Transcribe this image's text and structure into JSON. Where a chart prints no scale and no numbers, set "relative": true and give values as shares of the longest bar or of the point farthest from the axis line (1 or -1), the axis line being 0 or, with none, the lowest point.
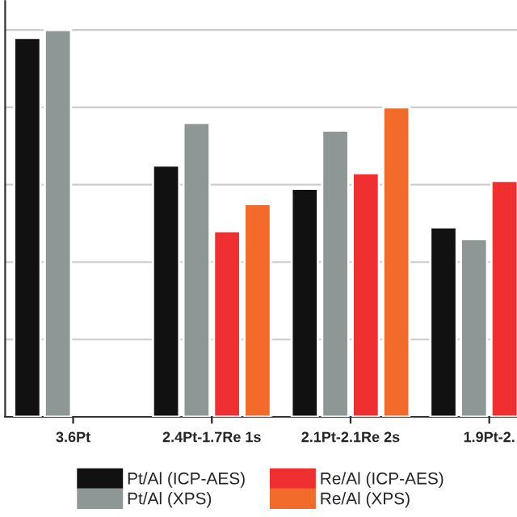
{
  "chart_data": {
    "type": "bar",
    "relative": true,
    "categories": [
      "3.6Pt",
      "2.4Pt-1.7Re 1s",
      "2.1Pt-2.1Re 2s",
      "1.9Pt-2."
    ],
    "series": [
      {
        "name": "Pt/Al (ICP-AES)",
        "color": "#111111",
        "values": [
          0.98,
          0.65,
          0.59,
          0.49
        ]
      },
      {
        "name": "Pt/Al (XPS)",
        "color": "#8f9696",
        "values": [
          1.0,
          0.76,
          0.74,
          0.46
        ]
      },
      {
        "name": "Re/Al (ICP-AES)",
        "color": "#f03030",
        "values": [
          null,
          0.48,
          0.63,
          0.61
        ]
      },
      {
        "name": "Re/Al (XPS)",
        "color": "#f26b2a",
        "values": [
          null,
          0.55,
          0.8,
          null
        ]
      }
    ],
    "grid": "y",
    "legend": "bottom"
  }
}
